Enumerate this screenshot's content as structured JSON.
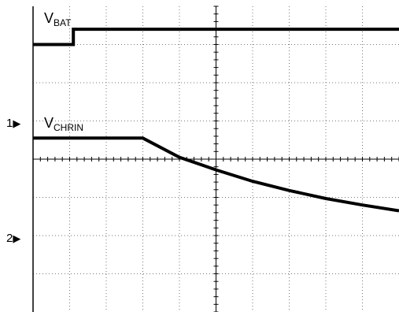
{
  "chart_data": {
    "type": "line",
    "title": "",
    "xlabel": "",
    "ylabel": "",
    "grid": true,
    "x_divisions": 10,
    "y_divisions": 8,
    "xlim": [
      0,
      10
    ],
    "ylim": [
      -4,
      4
    ],
    "channel_markers": [
      {
        "name": "1",
        "arrow": "▶",
        "level_div": 1.0
      },
      {
        "name": "2",
        "arrow": "▶",
        "level_div": -2.0
      }
    ],
    "series": [
      {
        "name_main": "V",
        "name_sub": "BAT",
        "x": [
          0,
          1.1,
          1.1,
          10
        ],
        "y": [
          3.0,
          3.0,
          3.4,
          3.4
        ]
      },
      {
        "name_main": "V",
        "name_sub": "CHRIN",
        "x": [
          0,
          3.0,
          4.0,
          5.0,
          6.0,
          7.0,
          8.0,
          9.0,
          10.0
        ],
        "y": [
          0.55,
          0.55,
          0.05,
          -0.28,
          -0.58,
          -0.82,
          -1.03,
          -1.2,
          -1.35
        ]
      }
    ]
  }
}
